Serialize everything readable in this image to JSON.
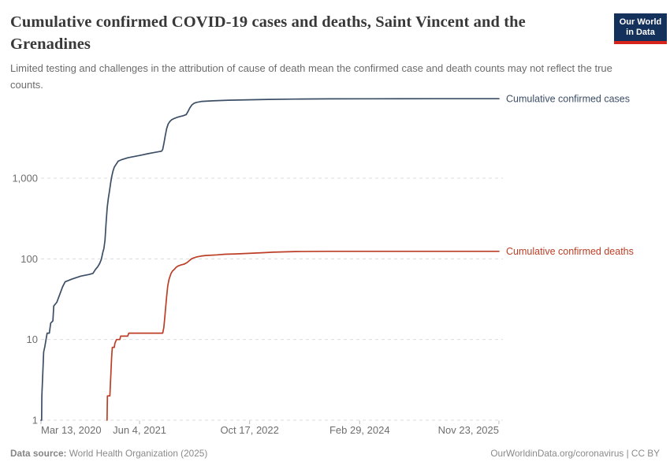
{
  "header": {
    "title": "Cumulative confirmed COVID-19 cases and deaths, Saint Vincent and the Grenadines",
    "subtitle": "Limited testing and challenges in the attribution of cause of death mean the confirmed case and death counts may not reflect the true counts."
  },
  "logo": {
    "line1": "Our World",
    "line2": "in Data"
  },
  "footer": {
    "source_label": "Data source:",
    "source_text": " World Health Organization (2025)",
    "credit": "OurWorldinData.org/coronavirus | CC BY"
  },
  "chart_data": {
    "type": "line",
    "y_scale": "log",
    "ylim": [
      1,
      10000
    ],
    "grid": "horizontal-dashed",
    "legend_position": "right-of-line-ends",
    "colors": {
      "cases": "#3C4E66",
      "deaths": "#BC3E26",
      "gridline": "#dcdcdc",
      "tick_text": "#6e6e6e"
    },
    "x_axis": {
      "day0_date": "Mar 13, 2020",
      "end_date": "Nov 23, 2025",
      "total_days": 2081,
      "ticks": [
        {
          "label": "Mar 13, 2020",
          "day": 0
        },
        {
          "label": "Jun 4, 2021",
          "day": 448
        },
        {
          "label": "Oct 17, 2022",
          "day": 948
        },
        {
          "label": "Feb 29, 2024",
          "day": 1448
        },
        {
          "label": "Nov 23, 2025",
          "day": 2081
        }
      ]
    },
    "y_axis": {
      "ticks": [
        {
          "label": "1",
          "value": 1
        },
        {
          "label": "10",
          "value": 10
        },
        {
          "label": "100",
          "value": 100
        },
        {
          "label": "1,000",
          "value": 1000
        }
      ]
    },
    "series": [
      {
        "id": "cases",
        "name": "Cumulative confirmed cases",
        "color": "#3C4E66",
        "final_value": 9674,
        "points": [
          [
            0,
            1
          ],
          [
            3,
            1
          ],
          [
            4,
            2
          ],
          [
            12,
            7
          ],
          [
            17,
            8
          ],
          [
            28,
            12
          ],
          [
            38,
            12
          ],
          [
            44,
            16
          ],
          [
            54,
            17
          ],
          [
            58,
            26
          ],
          [
            72,
            29
          ],
          [
            98,
            45
          ],
          [
            110,
            52
          ],
          [
            140,
            56
          ],
          [
            180,
            61
          ],
          [
            218,
            64
          ],
          [
            236,
            66
          ],
          [
            248,
            74
          ],
          [
            258,
            80
          ],
          [
            266,
            87
          ],
          [
            274,
            98
          ],
          [
            281,
            121
          ],
          [
            286,
            134
          ],
          [
            291,
            170
          ],
          [
            296,
            280
          ],
          [
            301,
            430
          ],
          [
            306,
            560
          ],
          [
            311,
            680
          ],
          [
            316,
            850
          ],
          [
            321,
            1030
          ],
          [
            327,
            1220
          ],
          [
            333,
            1370
          ],
          [
            341,
            1480
          ],
          [
            351,
            1625
          ],
          [
            368,
            1700
          ],
          [
            395,
            1790
          ],
          [
            425,
            1860
          ],
          [
            455,
            1930
          ],
          [
            485,
            2010
          ],
          [
            510,
            2070
          ],
          [
            532,
            2120
          ],
          [
            548,
            2160
          ],
          [
            553,
            2270
          ],
          [
            559,
            2750
          ],
          [
            564,
            3300
          ],
          [
            571,
            4100
          ],
          [
            578,
            4700
          ],
          [
            586,
            5050
          ],
          [
            594,
            5300
          ],
          [
            602,
            5450
          ],
          [
            616,
            5650
          ],
          [
            630,
            5800
          ],
          [
            646,
            5950
          ],
          [
            660,
            6150
          ],
          [
            669,
            6800
          ],
          [
            676,
            7400
          ],
          [
            686,
            8100
          ],
          [
            696,
            8500
          ],
          [
            706,
            8700
          ],
          [
            731,
            8950
          ],
          [
            781,
            9100
          ],
          [
            851,
            9250
          ],
          [
            941,
            9370
          ],
          [
            1031,
            9470
          ],
          [
            1151,
            9550
          ],
          [
            1311,
            9620
          ],
          [
            1501,
            9650
          ],
          [
            1801,
            9670
          ],
          [
            2081,
            9674
          ]
        ]
      },
      {
        "id": "deaths",
        "name": "Cumulative confirmed deaths",
        "color": "#BC3E26",
        "final_value": 124,
        "points": [
          [
            300,
            1
          ],
          [
            302,
            2
          ],
          [
            313,
            2
          ],
          [
            316,
            3
          ],
          [
            318,
            4
          ],
          [
            321,
            6
          ],
          [
            324,
            8
          ],
          [
            333,
            8
          ],
          [
            336,
            9
          ],
          [
            343,
            10
          ],
          [
            358,
            10
          ],
          [
            362,
            11
          ],
          [
            394,
            11
          ],
          [
            399,
            12
          ],
          [
            428,
            12
          ],
          [
            553,
            12
          ],
          [
            558,
            14
          ],
          [
            562,
            18
          ],
          [
            566,
            24
          ],
          [
            571,
            34
          ],
          [
            576,
            46
          ],
          [
            582,
            56
          ],
          [
            591,
            66
          ],
          [
            598,
            71
          ],
          [
            606,
            74
          ],
          [
            613,
            78
          ],
          [
            621,
            81
          ],
          [
            636,
            84
          ],
          [
            651,
            86
          ],
          [
            664,
            90
          ],
          [
            674,
            95
          ],
          [
            684,
            100
          ],
          [
            695,
            103
          ],
          [
            709,
            106
          ],
          [
            726,
            108
          ],
          [
            748,
            110
          ],
          [
            800,
            112
          ],
          [
            836,
            114
          ],
          [
            884,
            115
          ],
          [
            944,
            117
          ],
          [
            1004,
            119
          ],
          [
            1054,
            121
          ],
          [
            1154,
            123
          ],
          [
            1304,
            124
          ],
          [
            2081,
            124
          ]
        ]
      }
    ]
  }
}
